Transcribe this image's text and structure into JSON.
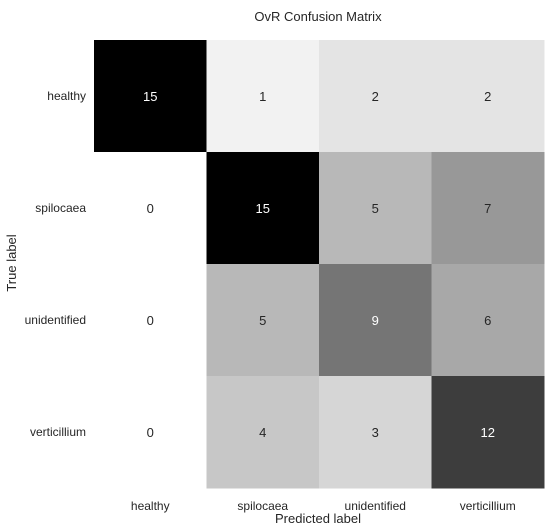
{
  "chart_data": {
    "type": "heatmap",
    "title": "OvR Confusion Matrix",
    "xlabel": "Predicted label",
    "ylabel": "True label",
    "x_categories": [
      "healthy",
      "spilocaea",
      "unidentified",
      "verticillium"
    ],
    "y_categories": [
      "healthy",
      "spilocaea",
      "unidentified",
      "verticillium"
    ],
    "values": [
      [
        15,
        1,
        2,
        2
      ],
      [
        0,
        15,
        5,
        7
      ],
      [
        0,
        5,
        9,
        6
      ],
      [
        0,
        4,
        3,
        12
      ]
    ],
    "colormap": "Greys",
    "colorbar": false,
    "grid": false
  }
}
